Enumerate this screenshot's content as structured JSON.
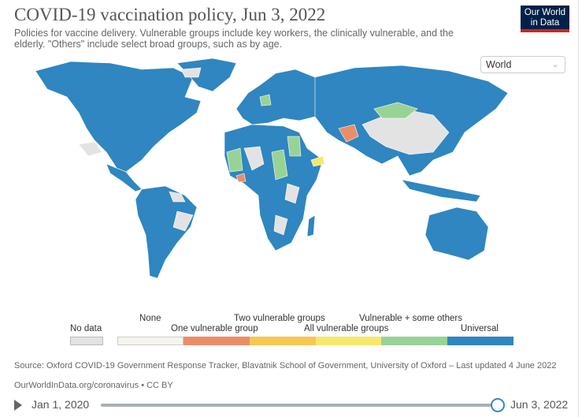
{
  "header": {
    "title": "COVID-19 vaccination policy, Jun 3, 2022",
    "subtitle": "Policies for vaccine delivery. Vulnerable groups include key workers, the clinically vulnerable, and the elderly. \"Others\" include select broad groups, such as by age.",
    "logo_line1": "Our World",
    "logo_line2": "in Data"
  },
  "region_select": {
    "value": "World",
    "icon": "chevron-down-icon"
  },
  "legend": {
    "no_data": "No data",
    "items": [
      {
        "label": "None",
        "color": "#f6f4ee"
      },
      {
        "label": "One vulnerable group",
        "color": "#ea8e6a"
      },
      {
        "label": "Two vulnerable groups",
        "color": "#f7c751"
      },
      {
        "label": "All vulnerable groups",
        "color": "#f6e86c"
      },
      {
        "label": "Vulnerable + some others",
        "color": "#98d396"
      },
      {
        "label": "Universal",
        "color": "#2f86c0"
      }
    ],
    "no_data_color": "#e3e3e3"
  },
  "footer": {
    "source": "Source: Oxford COVID-19 Government Response Tracker, Blavatnik School of Government, University of Oxford – Last updated 4 June 2022",
    "url": "OurWorldInData.org/coronavirus • CC BY"
  },
  "timeline": {
    "start": "Jan 1, 2020",
    "end": "Jun 3, 2022",
    "position": 1.0
  }
}
